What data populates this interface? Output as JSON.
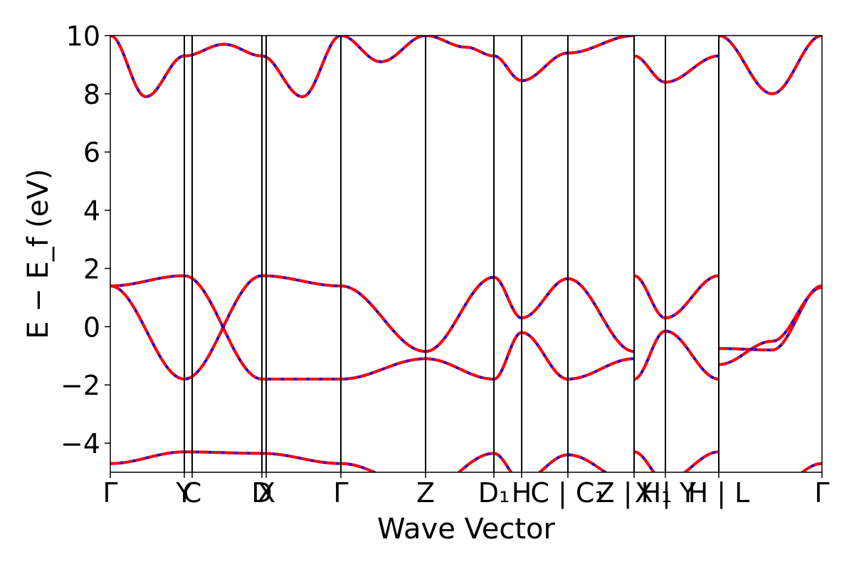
{
  "chart_data": {
    "type": "line",
    "title": "",
    "xlabel": "Wave Vector",
    "ylabel": "E − E_f (eV)",
    "ylim": [
      -5,
      10
    ],
    "xlim": [
      0,
      1
    ],
    "grid": false,
    "legend": "none",
    "colors": {
      "band_primary": "#ff0000",
      "band_secondary": "#0000ff",
      "kpath_line": "#000000",
      "frame": "#000000"
    },
    "yticks": [
      -4,
      -2,
      0,
      2,
      4,
      6,
      8,
      10
    ],
    "ytick_labels": [
      "−4",
      "−2",
      "0",
      "2",
      "4",
      "6",
      "8",
      "10"
    ],
    "kpath_lines": [
      0.104,
      0.115,
      0.213,
      0.219,
      0.324,
      0.443,
      0.539,
      0.578,
      0.643,
      0.736,
      0.78,
      0.855
    ],
    "xticks": [
      {
        "x": 0.0,
        "label": "Γ"
      },
      {
        "x": 0.104,
        "label": "Y"
      },
      {
        "x": 0.115,
        "label": "C"
      },
      {
        "x": 0.213,
        "label": "D"
      },
      {
        "x": 0.219,
        "label": "X"
      },
      {
        "x": 0.324,
        "label": "Γ"
      },
      {
        "x": 0.443,
        "label": "Z"
      },
      {
        "x": 0.539,
        "label": "D₁"
      },
      {
        "x": 0.578,
        "label": "H"
      },
      {
        "x": 0.643,
        "label": "C | C₁"
      },
      {
        "x": 0.736,
        "label": "Z | H₁"
      },
      {
        "x": 0.78,
        "label": "X | Y"
      },
      {
        "x": 0.855,
        "label": "H | L"
      },
      {
        "x": 1.0,
        "label": "Γ"
      }
    ],
    "series": [
      {
        "x": [
          0.0,
          0.05,
          0.104,
          0.16,
          0.213,
          0.27,
          0.324,
          0.38,
          0.443,
          0.5,
          0.539,
          0.578,
          0.643,
          0.736
        ],
        "values": [
          10,
          7.9,
          9.3,
          9.7,
          9.3,
          7.9,
          10,
          9.1,
          10,
          9.6,
          9.3,
          8.45,
          9.4,
          10
        ]
      },
      {
        "x": [
          0.736,
          0.78,
          0.855
        ],
        "values": [
          9.3,
          8.4,
          9.3
        ]
      },
      {
        "x": [
          0.855,
          0.93,
          1.0
        ],
        "values": [
          10,
          8.0,
          10
        ]
      },
      {
        "x": [
          0.0,
          0.104,
          0.213,
          0.324,
          0.443,
          0.539,
          0.578,
          0.643,
          0.736
        ],
        "values": [
          1.4,
          1.75,
          -1.8,
          -1.8,
          -1.1,
          -1.8,
          -0.2,
          -1.8,
          -1.1
        ]
      },
      {
        "x": [
          0.0,
          0.104,
          0.213,
          0.324,
          0.443,
          0.539,
          0.578,
          0.643,
          0.736
        ],
        "values": [
          1.4,
          -1.8,
          1.75,
          1.4,
          -0.85,
          1.7,
          0.3,
          1.65,
          -0.85
        ]
      },
      {
        "x": [
          0.736,
          0.78,
          0.855
        ],
        "values": [
          1.75,
          0.3,
          1.75
        ]
      },
      {
        "x": [
          0.736,
          0.78,
          0.855
        ],
        "values": [
          -1.8,
          -0.15,
          -1.8
        ]
      },
      {
        "x": [
          0.855,
          0.93,
          1.0
        ],
        "values": [
          -0.75,
          -0.8,
          1.4
        ]
      },
      {
        "x": [
          0.855,
          0.93,
          1.0
        ],
        "values": [
          -1.3,
          -0.5,
          1.35
        ]
      },
      {
        "x": [
          0.0,
          0.104,
          0.213,
          0.324,
          0.443,
          0.539,
          0.578,
          0.643,
          0.736
        ],
        "values": [
          -4.7,
          -4.3,
          -4.35,
          -4.7,
          -5.6,
          -4.35,
          -5.3,
          -4.4,
          -5.4
        ]
      },
      {
        "x": [
          0.736,
          0.78,
          0.855
        ],
        "values": [
          -4.3,
          -5.3,
          -4.3
        ]
      },
      {
        "x": [
          0.855,
          0.93,
          1.0
        ],
        "values": [
          -5.6,
          -5.6,
          -4.7
        ]
      }
    ]
  }
}
